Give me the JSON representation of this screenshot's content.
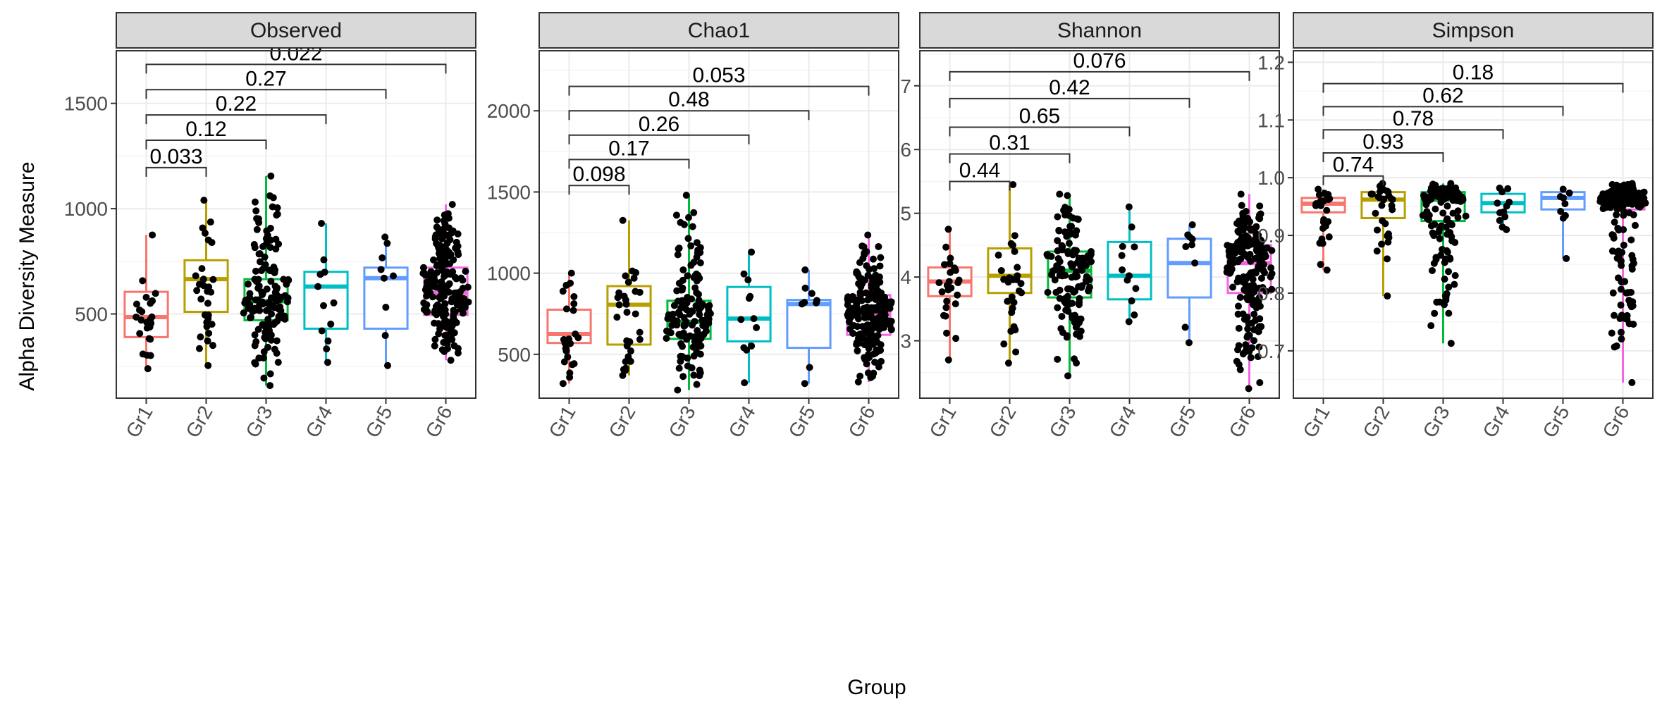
{
  "figure": {
    "ylabel": "Alpha Diversity Measure",
    "xlabel": "Group"
  },
  "colors": {
    "Gr1": "#F8766D",
    "Gr2": "#B79F00",
    "Gr3": "#00BA38",
    "Gr4": "#00BFC4",
    "Gr5": "#619CFF",
    "Gr6": "#F564E3",
    "strip_bg": "#d9d9d9",
    "grid_major": "#ebebeb",
    "grid_minor": "#f5f5f5",
    "point": "#000000"
  },
  "chart_data": [
    {
      "type": "box",
      "title": "Observed",
      "categories": [
        "Gr1",
        "Gr2",
        "Gr3",
        "Gr4",
        "Gr5",
        "Gr6"
      ],
      "ylim": [
        100,
        1750
      ],
      "yticks": [
        500,
        1000,
        1500
      ],
      "ytick_labels": [
        "500",
        "1000",
        "1500"
      ],
      "grid": true,
      "boxes": [
        {
          "group": "Gr1",
          "min": 240,
          "q1": 390,
          "median": 485,
          "q3": 605,
          "max": 875
        },
        {
          "group": "Gr2",
          "min": 255,
          "q1": 510,
          "median": 665,
          "q3": 755,
          "max": 1040
        },
        {
          "group": "Gr3",
          "min": 160,
          "q1": 470,
          "median": 560,
          "q3": 665,
          "max": 1155
        },
        {
          "group": "Gr4",
          "min": 270,
          "q1": 430,
          "median": 630,
          "q3": 700,
          "max": 930
        },
        {
          "group": "Gr5",
          "min": 255,
          "q1": 430,
          "median": 670,
          "q3": 720,
          "max": 865
        },
        {
          "group": "Gr6",
          "min": 280,
          "q1": 495,
          "median": 600,
          "q3": 720,
          "max": 1020
        }
      ],
      "counts": [
        25,
        30,
        140,
        12,
        9,
        210
      ],
      "comparisons": [
        {
          "from": "Gr1",
          "to": "Gr2",
          "y": 1195,
          "label": "0.033"
        },
        {
          "from": "Gr1",
          "to": "Gr3",
          "y": 1325,
          "label": "0.12"
        },
        {
          "from": "Gr1",
          "to": "Gr4",
          "y": 1445,
          "label": "0.22"
        },
        {
          "from": "Gr1",
          "to": "Gr5",
          "y": 1565,
          "label": "0.27"
        },
        {
          "from": "Gr1",
          "to": "Gr6",
          "y": 1685,
          "label": "0.022"
        }
      ]
    },
    {
      "type": "box",
      "title": "Chao1",
      "categories": [
        "Gr1",
        "Gr2",
        "Gr3",
        "Gr4",
        "Gr5",
        "Gr6"
      ],
      "ylim": [
        230,
        2370
      ],
      "yticks": [
        500,
        1000,
        1500,
        2000
      ],
      "ytick_labels": [
        "500",
        "1000",
        "1500",
        "2000"
      ],
      "grid": true,
      "boxes": [
        {
          "group": "Gr1",
          "min": 320,
          "q1": 570,
          "median": 625,
          "q3": 775,
          "max": 1000
        },
        {
          "group": "Gr2",
          "min": 370,
          "q1": 560,
          "median": 805,
          "q3": 920,
          "max": 1325
        },
        {
          "group": "Gr3",
          "min": 280,
          "q1": 595,
          "median": 700,
          "q3": 830,
          "max": 1480
        },
        {
          "group": "Gr4",
          "min": 325,
          "q1": 580,
          "median": 720,
          "q3": 915,
          "max": 1130
        },
        {
          "group": "Gr5",
          "min": 320,
          "q1": 540,
          "median": 810,
          "q3": 835,
          "max": 1020
        },
        {
          "group": "Gr6",
          "min": 330,
          "q1": 620,
          "median": 750,
          "q3": 865,
          "max": 1235
        }
      ],
      "counts": [
        25,
        30,
        140,
        12,
        9,
        210
      ],
      "comparisons": [
        {
          "from": "Gr1",
          "to": "Gr2",
          "y": 1540,
          "label": "0.098"
        },
        {
          "from": "Gr1",
          "to": "Gr3",
          "y": 1700,
          "label": "0.17"
        },
        {
          "from": "Gr1",
          "to": "Gr4",
          "y": 1850,
          "label": "0.26"
        },
        {
          "from": "Gr1",
          "to": "Gr5",
          "y": 2000,
          "label": "0.48"
        },
        {
          "from": "Gr1",
          "to": "Gr6",
          "y": 2150,
          "label": "0.053"
        }
      ]
    },
    {
      "type": "box",
      "title": "Shannon",
      "categories": [
        "Gr1",
        "Gr2",
        "Gr3",
        "Gr4",
        "Gr5",
        "Gr6"
      ],
      "ylim": [
        2.1,
        7.55
      ],
      "yticks": [
        3,
        4,
        5,
        6,
        7
      ],
      "ytick_labels": [
        "3",
        "4",
        "5",
        "6",
        "7"
      ],
      "grid": true,
      "boxes": [
        {
          "group": "Gr1",
          "min": 2.7,
          "q1": 3.7,
          "median": 3.93,
          "q3": 4.15,
          "max": 4.75
        },
        {
          "group": "Gr2",
          "min": 2.65,
          "q1": 3.75,
          "median": 4.02,
          "q3": 4.45,
          "max": 5.45
        },
        {
          "group": "Gr3",
          "min": 2.45,
          "q1": 3.68,
          "median": 4.1,
          "q3": 4.4,
          "max": 5.3
        },
        {
          "group": "Gr4",
          "min": 3.3,
          "q1": 3.65,
          "median": 4.02,
          "q3": 4.55,
          "max": 5.1
        },
        {
          "group": "Gr5",
          "min": 2.97,
          "q1": 3.68,
          "median": 4.22,
          "q3": 4.6,
          "max": 4.82
        },
        {
          "group": "Gr6",
          "min": 2.25,
          "q1": 3.75,
          "median": 4.22,
          "q3": 4.5,
          "max": 5.3
        }
      ],
      "counts": [
        25,
        30,
        140,
        12,
        9,
        210
      ],
      "comparisons": [
        {
          "from": "Gr1",
          "to": "Gr2",
          "y": 5.5,
          "label": "0.44"
        },
        {
          "from": "Gr1",
          "to": "Gr3",
          "y": 5.93,
          "label": "0.31"
        },
        {
          "from": "Gr1",
          "to": "Gr4",
          "y": 6.35,
          "label": "0.65"
        },
        {
          "from": "Gr1",
          "to": "Gr5",
          "y": 6.8,
          "label": "0.42"
        },
        {
          "from": "Gr1",
          "to": "Gr6",
          "y": 7.22,
          "label": "0.076"
        }
      ]
    },
    {
      "type": "box",
      "title": "Simpson",
      "categories": [
        "Gr1",
        "Gr2",
        "Gr3",
        "Gr4",
        "Gr5",
        "Gr6"
      ],
      "ylim": [
        0.618,
        1.22
      ],
      "yticks": [
        0.7,
        0.8,
        0.9,
        1.0,
        1.1,
        1.2
      ],
      "ytick_labels": [
        "0.7",
        "0.8",
        "0.9",
        "1.0",
        "1.1",
        "1.2"
      ],
      "grid": true,
      "boxes": [
        {
          "group": "Gr1",
          "min": 0.84,
          "q1": 0.94,
          "median": 0.955,
          "q3": 0.965,
          "max": 0.98
        },
        {
          "group": "Gr2",
          "min": 0.795,
          "q1": 0.93,
          "median": 0.962,
          "q3": 0.975,
          "max": 0.99
        },
        {
          "group": "Gr3",
          "min": 0.713,
          "q1": 0.925,
          "median": 0.962,
          "q3": 0.975,
          "max": 0.99
        },
        {
          "group": "Gr4",
          "min": 0.91,
          "q1": 0.94,
          "median": 0.956,
          "q3": 0.972,
          "max": 0.982
        },
        {
          "group": "Gr5",
          "min": 0.86,
          "q1": 0.945,
          "median": 0.965,
          "q3": 0.975,
          "max": 0.98
        },
        {
          "group": "Gr6",
          "min": 0.645,
          "q1": 0.945,
          "median": 0.962,
          "q3": 0.975,
          "max": 0.99
        }
      ],
      "counts": [
        25,
        30,
        140,
        12,
        9,
        210
      ],
      "comparisons": [
        {
          "from": "Gr1",
          "to": "Gr2",
          "y": 1.003,
          "label": "0.74"
        },
        {
          "from": "Gr1",
          "to": "Gr3",
          "y": 1.043,
          "label": "0.93"
        },
        {
          "from": "Gr1",
          "to": "Gr4",
          "y": 1.083,
          "label": "0.78"
        },
        {
          "from": "Gr1",
          "to": "Gr5",
          "y": 1.123,
          "label": "0.62"
        },
        {
          "from": "Gr1",
          "to": "Gr6",
          "y": 1.163,
          "label": "0.18"
        }
      ]
    }
  ]
}
